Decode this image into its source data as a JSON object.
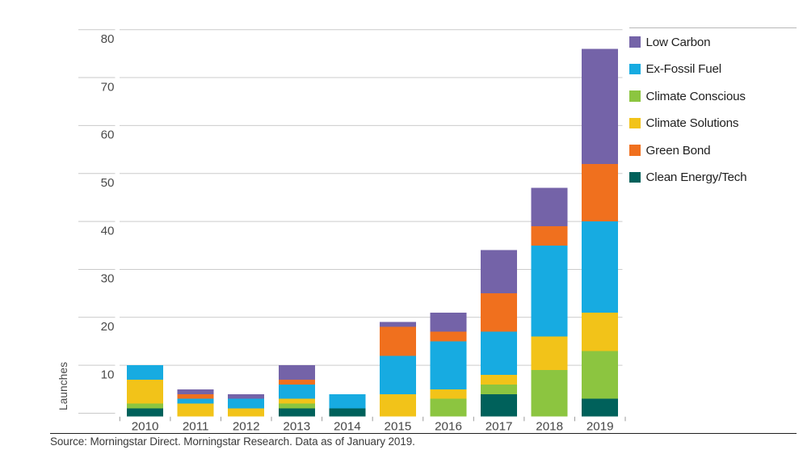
{
  "figure": {
    "y_axis_label": "Launches",
    "source_note": "Source: Morningstar Direct. Morningstar Research. Data as of January 2019."
  },
  "legend": {
    "position": "top-right",
    "items": [
      {
        "label": "Low Carbon",
        "color": "#7463a8"
      },
      {
        "label": "Ex-Fossil Fuel",
        "color": "#17abe1"
      },
      {
        "label": "Climate Conscious",
        "color": "#8cc540"
      },
      {
        "label": "Climate Solutions",
        "color": "#f2c319"
      },
      {
        "label": "Green Bond",
        "color": "#f0701e"
      },
      {
        "label": "Clean Energy/Tech",
        "color": "#00615b"
      }
    ]
  },
  "chart_data": {
    "type": "bar",
    "stacked": true,
    "title": "",
    "xlabel": "",
    "ylabel": "Launches",
    "ylim": [
      0,
      80
    ],
    "ytick_interval": 10,
    "yticks": [
      10,
      20,
      30,
      40,
      50,
      60,
      70,
      80
    ],
    "grid": true,
    "legend_position": "top-right",
    "categories": [
      "2010",
      "2011",
      "2012",
      "2013",
      "2014",
      "2015",
      "2016",
      "2017",
      "2018",
      "2019"
    ],
    "series": [
      {
        "name": "Clean Energy/Tech",
        "color": "#00615b",
        "values": [
          1,
          0,
          0,
          1,
          1,
          0,
          0,
          4,
          0,
          3
        ]
      },
      {
        "name": "Climate Conscious",
        "color": "#8cc540",
        "values": [
          1,
          0,
          0,
          1,
          0,
          0,
          3,
          2,
          9,
          10
        ]
      },
      {
        "name": "Climate Solutions",
        "color": "#f2c319",
        "values": [
          5,
          2,
          1,
          1,
          0,
          4,
          2,
          2,
          7,
          8
        ]
      },
      {
        "name": "Ex-Fossil Fuel",
        "color": "#17abe1",
        "values": [
          3,
          1,
          2,
          3,
          3,
          8,
          10,
          9,
          19,
          19
        ]
      },
      {
        "name": "Green Bond",
        "color": "#f0701e",
        "values": [
          0,
          1,
          0,
          1,
          0,
          6,
          2,
          8,
          4,
          12
        ]
      },
      {
        "name": "Low Carbon",
        "color": "#7463a8",
        "values": [
          0,
          1,
          1,
          3,
          0,
          1,
          4,
          9,
          8,
          24
        ]
      }
    ],
    "totals": [
      10,
      5,
      4,
      10,
      4,
      19,
      21,
      34,
      47,
      76
    ],
    "stacking_order_bottom_to_top": [
      "Clean Energy/Tech",
      "Climate Conscious",
      "Climate Solutions",
      "Ex-Fossil Fuel",
      "Green Bond",
      "Low Carbon"
    ]
  }
}
